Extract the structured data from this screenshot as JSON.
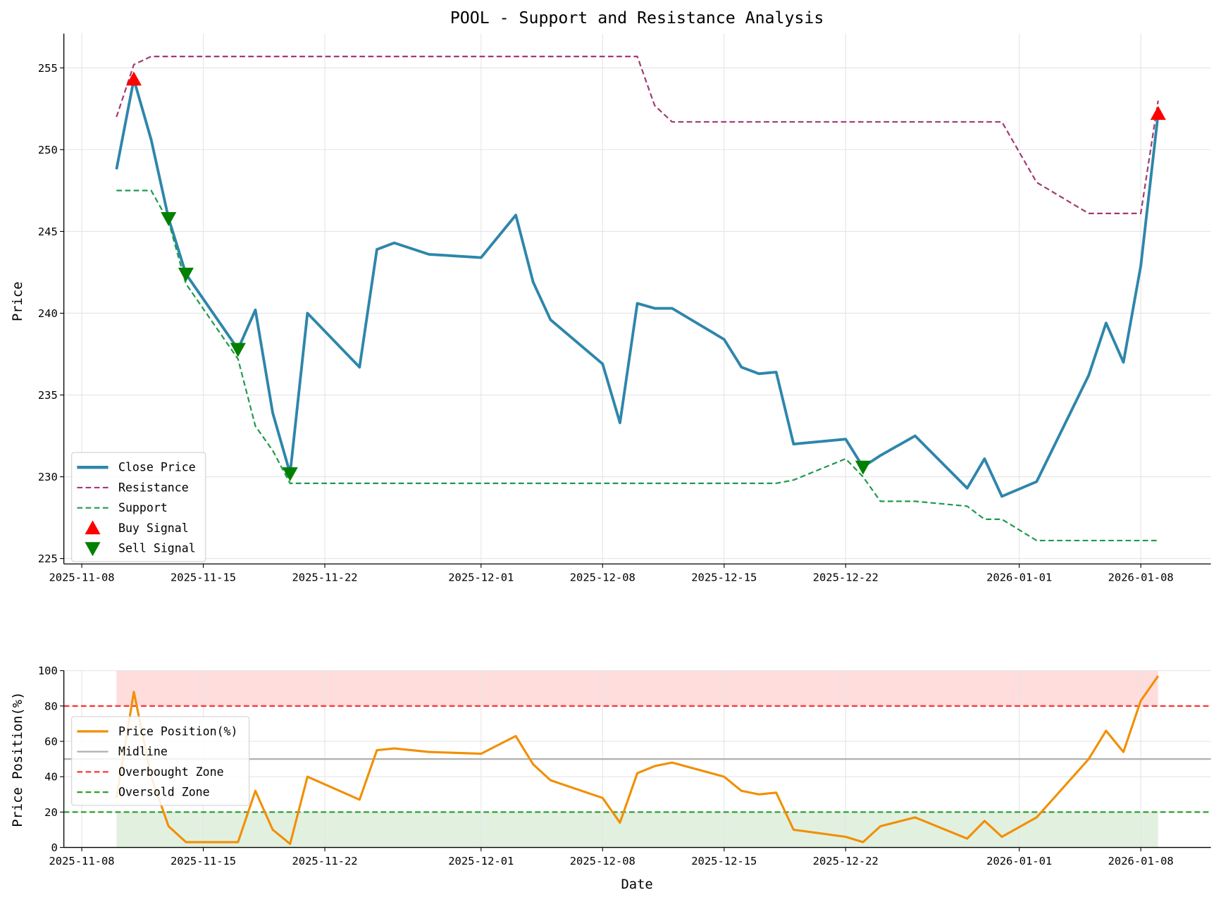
{
  "chart_data": [
    {
      "type": "line",
      "title": "POOL - Support and Resistance Analysis",
      "xlabel": "",
      "ylabel": "Price",
      "ylim": [
        224.5,
        257.2
      ],
      "yticks": [
        225,
        230,
        235,
        240,
        245,
        250,
        255
      ],
      "xticks": [
        "2025-11-08",
        "2025-11-15",
        "2025-11-22",
        "2025-12-01",
        "2025-12-08",
        "2025-12-15",
        "2025-12-22",
        "2026-01-01",
        "2026-01-08"
      ],
      "grid": true,
      "legend_position": "lower-left",
      "x": [
        "2025-11-10",
        "2025-11-11",
        "2025-11-12",
        "2025-11-13",
        "2025-11-14",
        "2025-11-17",
        "2025-11-18",
        "2025-11-19",
        "2025-11-20",
        "2025-11-21",
        "2025-11-24",
        "2025-11-25",
        "2025-11-26",
        "2025-11-28",
        "2025-12-01",
        "2025-12-02",
        "2025-12-03",
        "2025-12-04",
        "2025-12-05",
        "2025-12-08",
        "2025-12-09",
        "2025-12-10",
        "2025-12-11",
        "2025-12-12",
        "2025-12-15",
        "2025-12-16",
        "2025-12-17",
        "2025-12-18",
        "2025-12-19",
        "2025-12-22",
        "2025-12-23",
        "2025-12-24",
        "2025-12-26",
        "2025-12-29",
        "2025-12-30",
        "2025-12-31",
        "2026-01-02",
        "2026-01-05",
        "2026-01-06",
        "2026-01-07",
        "2026-01-08",
        "2026-01-09"
      ],
      "series": [
        {
          "name": "Close Price",
          "color": "#2e86ab",
          "style": "solid",
          "values": [
            248.8,
            254.3,
            250.6,
            245.8,
            242.4,
            237.8,
            240.2,
            233.9,
            230.2,
            240.0,
            236.7,
            243.9,
            244.3,
            243.6,
            243.4,
            244.7,
            246.0,
            241.9,
            239.6,
            236.9,
            233.3,
            240.6,
            240.3,
            240.3,
            238.4,
            236.7,
            236.3,
            236.4,
            232.0,
            232.3,
            230.6,
            231.3,
            232.5,
            229.3,
            231.1,
            228.8,
            229.7,
            236.2,
            239.4,
            237.0,
            242.9,
            252.2
          ]
        },
        {
          "name": "Resistance",
          "color": "#a23b72",
          "style": "dashed",
          "values": [
            252.0,
            255.2,
            255.7,
            255.7,
            255.7,
            255.7,
            255.7,
            255.7,
            255.7,
            255.7,
            255.7,
            255.7,
            255.7,
            255.7,
            255.7,
            255.7,
            255.7,
            255.7,
            255.7,
            255.7,
            255.7,
            255.7,
            252.7,
            251.7,
            251.7,
            251.7,
            251.7,
            251.7,
            251.7,
            251.7,
            251.7,
            251.7,
            251.7,
            251.7,
            251.7,
            251.7,
            248.0,
            246.1,
            246.1,
            246.1,
            246.1,
            253.0
          ]
        },
        {
          "name": "Support",
          "color": "#1f9a4d",
          "style": "dashed",
          "values": [
            247.5,
            247.5,
            247.5,
            245.6,
            241.8,
            237.2,
            233.1,
            231.6,
            229.6,
            229.6,
            229.6,
            229.6,
            229.6,
            229.6,
            229.6,
            229.6,
            229.6,
            229.6,
            229.6,
            229.6,
            229.6,
            229.6,
            229.6,
            229.6,
            229.6,
            229.6,
            229.6,
            229.6,
            229.8,
            231.1,
            230.0,
            228.5,
            228.5,
            228.2,
            227.4,
            227.4,
            226.1,
            226.1,
            226.1,
            226.1,
            226.1,
            226.1
          ]
        }
      ],
      "markers": [
        {
          "name": "Buy Signal",
          "color": "#ff0000",
          "shape": "triangle-up",
          "points": [
            {
              "x": "2025-11-11",
              "y": 254.3
            },
            {
              "x": "2026-01-09",
              "y": 252.2
            }
          ]
        },
        {
          "name": "Sell Signal",
          "color": "#008000",
          "shape": "triangle-down",
          "points": [
            {
              "x": "2025-11-13",
              "y": 245.8
            },
            {
              "x": "2025-11-14",
              "y": 242.4
            },
            {
              "x": "2025-11-17",
              "y": 237.8
            },
            {
              "x": "2025-11-20",
              "y": 230.2
            },
            {
              "x": "2025-12-23",
              "y": 230.6
            }
          ]
        }
      ]
    },
    {
      "type": "line",
      "title": "",
      "xlabel": "Date",
      "ylabel": "Price Position(%)",
      "ylim": [
        0,
        100
      ],
      "yticks": [
        0,
        20,
        40,
        60,
        80,
        100
      ],
      "xticks": [
        "2025-11-08",
        "2025-11-15",
        "2025-11-22",
        "2025-12-01",
        "2025-12-08",
        "2025-12-15",
        "2025-12-22",
        "2026-01-01",
        "2026-01-08"
      ],
      "grid": true,
      "legend_position": "upper-left",
      "series": [
        {
          "name": "Price Position(%)",
          "color": "#f18f01",
          "style": "solid",
          "values": [
            28,
            88,
            40,
            12,
            3,
            3,
            32,
            10,
            2,
            40,
            27,
            55,
            56,
            54,
            53,
            58,
            63,
            47,
            38,
            28,
            14,
            42,
            46,
            48,
            40,
            32,
            30,
            31,
            10,
            6,
            3,
            12,
            17,
            5,
            15,
            6,
            17,
            50,
            66,
            54,
            83,
            97
          ]
        }
      ],
      "hlines": [
        {
          "name": "Midline",
          "y": 50,
          "color": "#b0b0b0",
          "style": "solid"
        },
        {
          "name": "Overbought Zone",
          "y": 80,
          "color": "#ff3333",
          "style": "dashed"
        },
        {
          "name": "Oversold Zone",
          "y": 20,
          "color": "#2ca02c",
          "style": "dashed"
        }
      ],
      "zones": [
        {
          "from": 80,
          "to": 100,
          "color": "#ffdddd"
        },
        {
          "from": 0,
          "to": 20,
          "color": "#e2f0e0"
        }
      ]
    }
  ]
}
